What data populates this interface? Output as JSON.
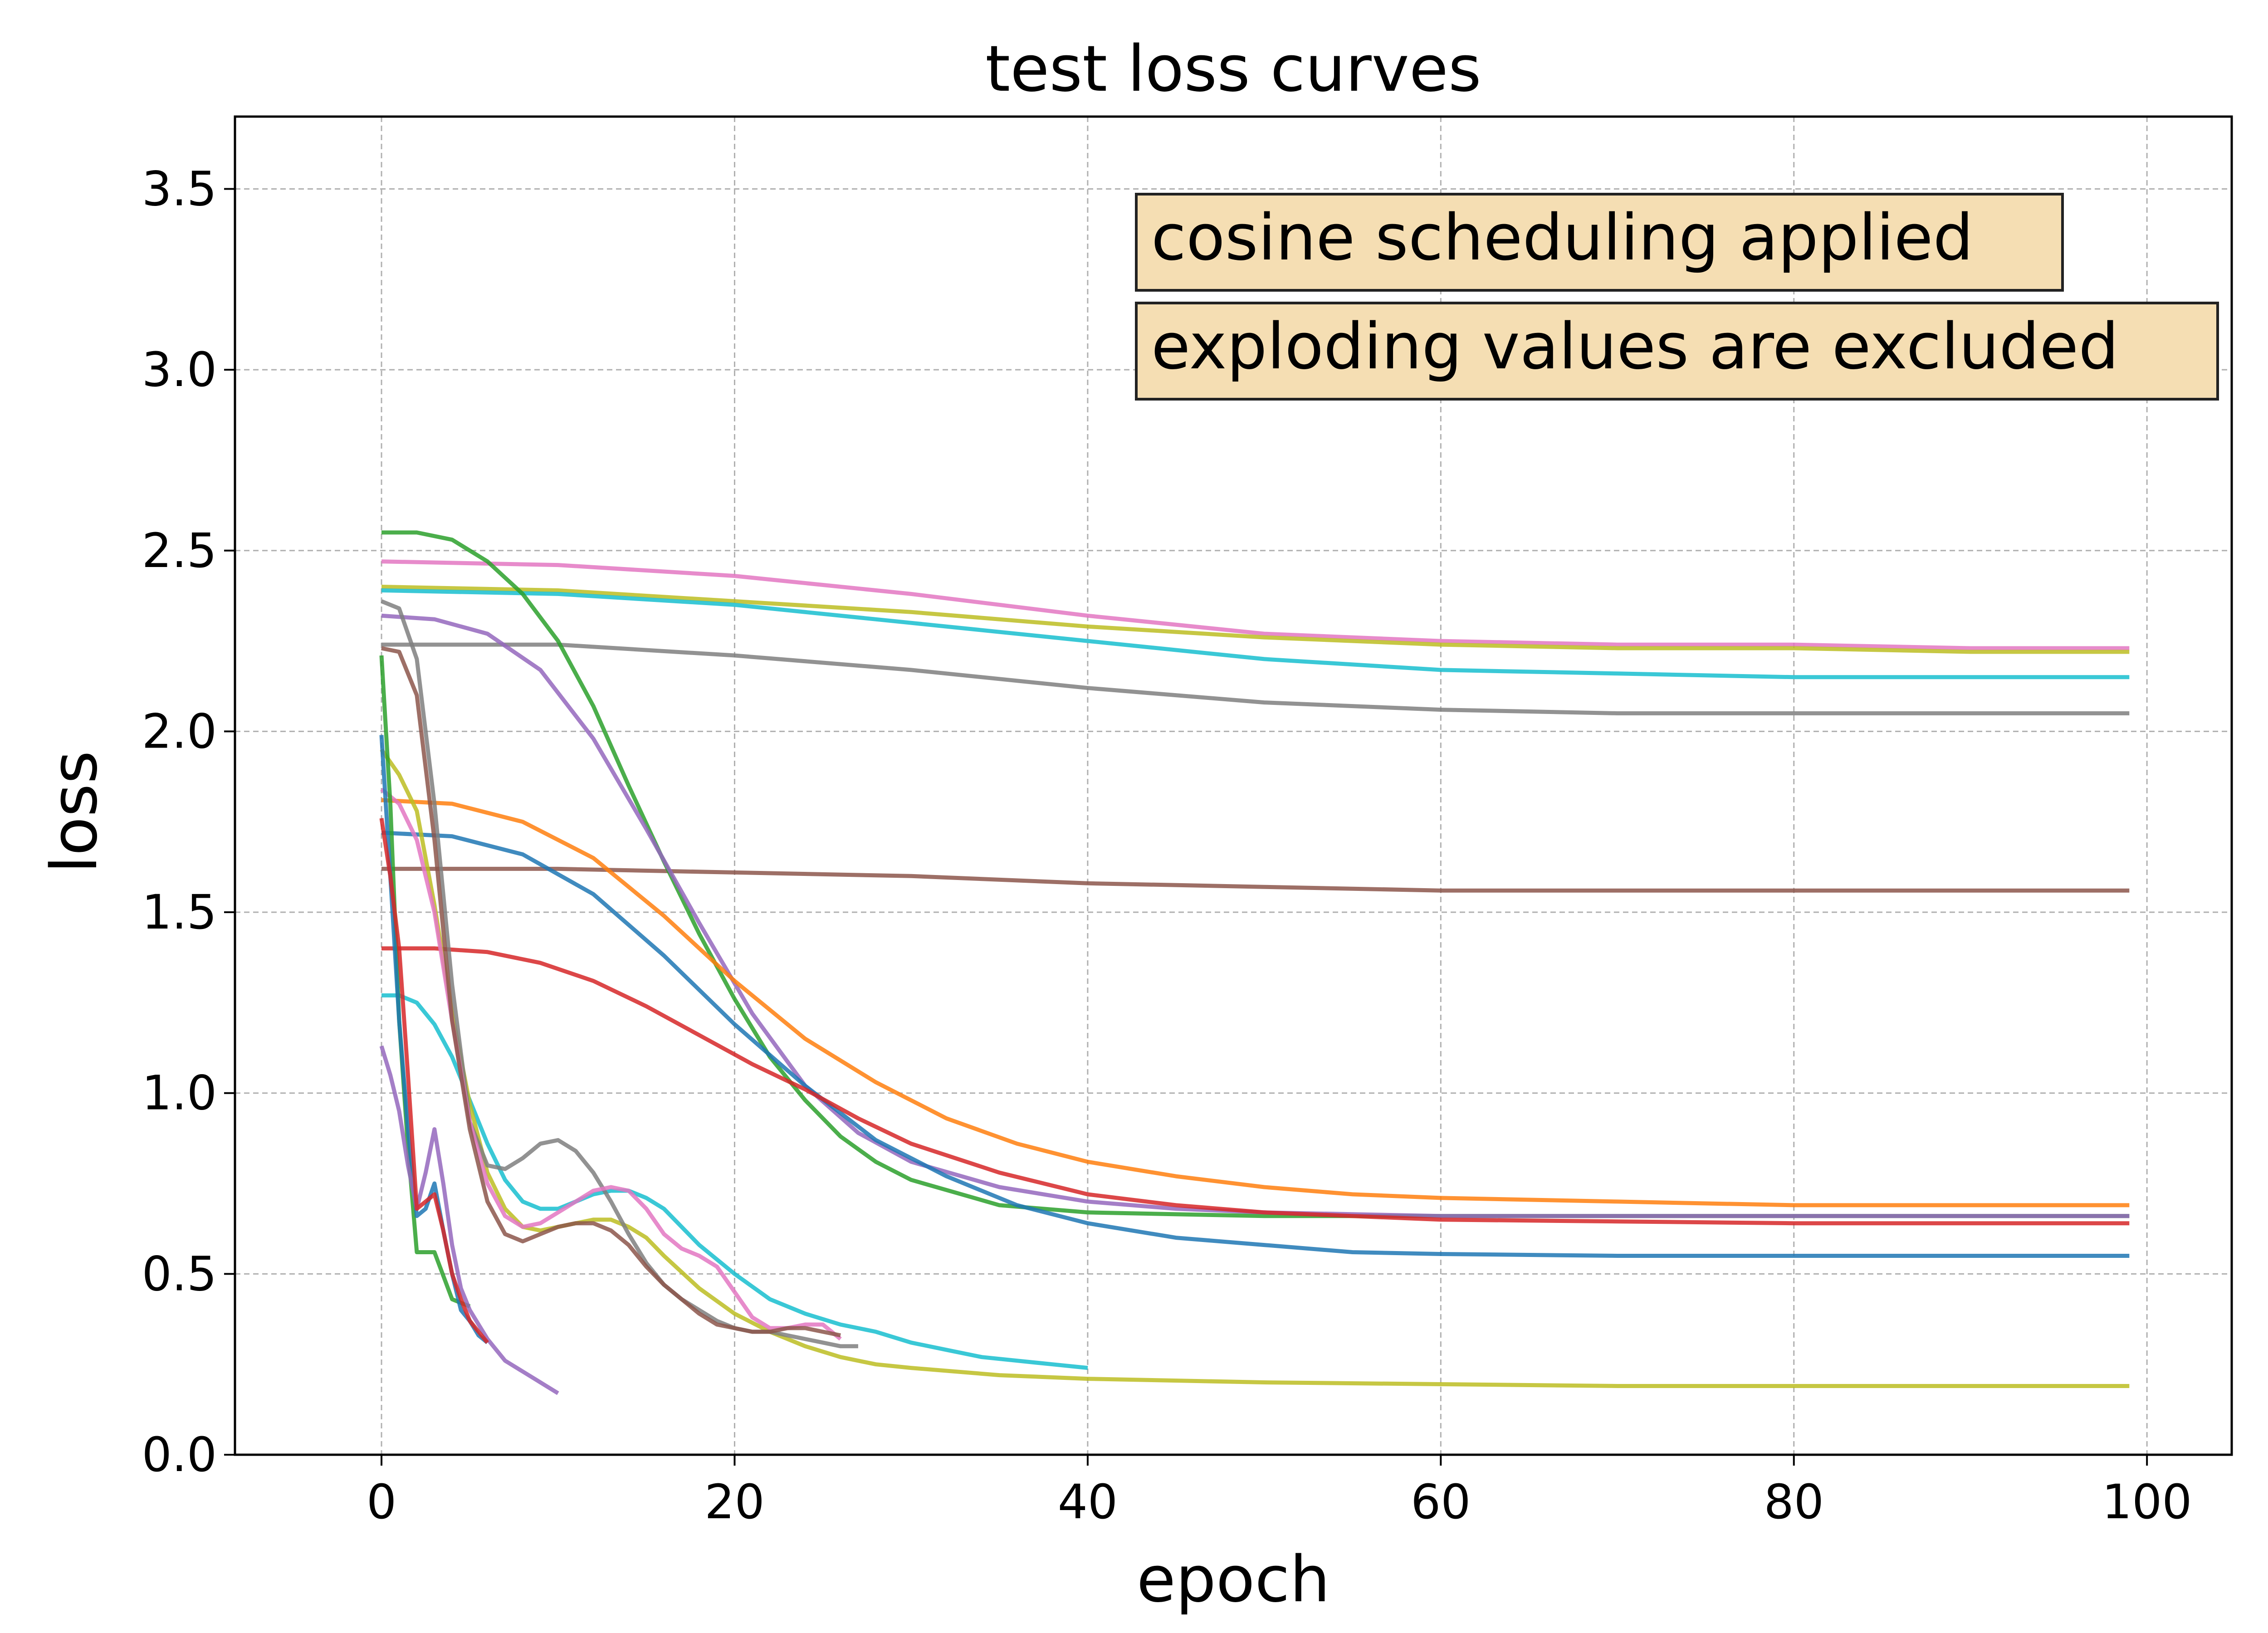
{
  "chart_data": {
    "type": "line",
    "title": "test loss curves",
    "xlabel": "epoch",
    "ylabel": "loss",
    "xlim": [
      -8.3,
      104.8
    ],
    "ylim": [
      0.0,
      3.7
    ],
    "xticks": [
      0,
      20,
      40,
      60,
      80,
      100
    ],
    "yticks": [
      0.0,
      0.5,
      1.0,
      1.5,
      2.0,
      2.5,
      3.0,
      3.5
    ],
    "xtick_labels": [
      "0",
      "20",
      "40",
      "60",
      "80",
      "100"
    ],
    "ytick_labels": [
      "0.0",
      "0.5",
      "1.0",
      "1.5",
      "2.0",
      "2.5",
      "3.0",
      "3.5"
    ],
    "grid": true,
    "legend": "none",
    "annotations": [
      {
        "text": "cosine scheduling applied",
        "box_color": "#f5deb3"
      },
      {
        "text": "exploding values are excluded",
        "box_color": "#f5deb3"
      }
    ],
    "series": [
      {
        "color": "#e377c2",
        "x": [
          0,
          10,
          20,
          30,
          40,
          50,
          60,
          70,
          80,
          90,
          99
        ],
        "y": [
          2.47,
          2.46,
          2.43,
          2.38,
          2.32,
          2.27,
          2.25,
          2.24,
          2.24,
          2.23,
          2.23
        ]
      },
      {
        "color": "#bcbd22",
        "x": [
          0,
          10,
          20,
          30,
          40,
          50,
          60,
          70,
          80,
          90,
          99
        ],
        "y": [
          2.4,
          2.39,
          2.36,
          2.33,
          2.29,
          2.26,
          2.24,
          2.23,
          2.23,
          2.22,
          2.22
        ]
      },
      {
        "color": "#17becf",
        "x": [
          0,
          10,
          20,
          30,
          40,
          50,
          60,
          70,
          80,
          90,
          99
        ],
        "y": [
          2.39,
          2.38,
          2.35,
          2.3,
          2.25,
          2.2,
          2.17,
          2.16,
          2.15,
          2.15,
          2.15
        ]
      },
      {
        "color": "#7f7f7f",
        "x": [
          0,
          10,
          20,
          30,
          40,
          50,
          60,
          70,
          80,
          90,
          99
        ],
        "y": [
          2.24,
          2.24,
          2.21,
          2.17,
          2.12,
          2.08,
          2.06,
          2.05,
          2.05,
          2.05,
          2.05
        ]
      },
      {
        "color": "#8c564b",
        "x": [
          0,
          10,
          20,
          30,
          40,
          50,
          60,
          70,
          80,
          90,
          99
        ],
        "y": [
          1.62,
          1.62,
          1.61,
          1.6,
          1.58,
          1.57,
          1.56,
          1.56,
          1.56,
          1.56,
          1.56
        ]
      },
      {
        "color": "#2ca02c",
        "x": [
          0,
          2,
          4,
          6,
          8,
          10,
          12,
          14,
          16,
          18,
          20,
          22,
          24,
          26,
          28,
          30,
          35,
          40,
          50,
          60,
          70,
          80,
          90,
          99
        ],
        "y": [
          2.55,
          2.55,
          2.53,
          2.47,
          2.38,
          2.25,
          2.07,
          1.85,
          1.64,
          1.44,
          1.26,
          1.1,
          0.98,
          0.88,
          0.81,
          0.76,
          0.69,
          0.67,
          0.66,
          0.66,
          0.66,
          0.66,
          0.66,
          0.66
        ]
      },
      {
        "color": "#9467bd",
        "x": [
          0,
          3,
          6,
          9,
          12,
          15,
          18,
          21,
          24,
          27,
          30,
          35,
          40,
          45,
          50,
          60,
          70,
          80,
          90,
          99
        ],
        "y": [
          2.32,
          2.31,
          2.27,
          2.17,
          1.98,
          1.73,
          1.47,
          1.22,
          1.02,
          0.89,
          0.81,
          0.74,
          0.7,
          0.68,
          0.67,
          0.66,
          0.66,
          0.66,
          0.66,
          0.66
        ]
      },
      {
        "color": "#ff7f0e",
        "x": [
          0,
          4,
          8,
          12,
          16,
          20,
          24,
          28,
          32,
          36,
          40,
          45,
          50,
          55,
          60,
          70,
          80,
          90,
          99
        ],
        "y": [
          1.81,
          1.8,
          1.75,
          1.65,
          1.49,
          1.31,
          1.15,
          1.03,
          0.93,
          0.86,
          0.81,
          0.77,
          0.74,
          0.72,
          0.71,
          0.7,
          0.69,
          0.69,
          0.69
        ]
      },
      {
        "color": "#1f77b4",
        "x": [
          0,
          4,
          8,
          12,
          16,
          20,
          24,
          28,
          32,
          36,
          40,
          45,
          50,
          55,
          60,
          70,
          80,
          90,
          99
        ],
        "y": [
          1.72,
          1.71,
          1.66,
          1.55,
          1.38,
          1.19,
          1.02,
          0.87,
          0.77,
          0.69,
          0.64,
          0.6,
          0.58,
          0.56,
          0.555,
          0.55,
          0.55,
          0.55,
          0.55
        ]
      },
      {
        "color": "#d62728",
        "x": [
          0,
          3,
          6,
          9,
          12,
          15,
          18,
          21,
          24,
          27,
          30,
          35,
          40,
          45,
          50,
          60,
          70,
          80,
          90,
          99
        ],
        "y": [
          1.4,
          1.4,
          1.39,
          1.36,
          1.31,
          1.24,
          1.16,
          1.08,
          1.01,
          0.93,
          0.86,
          0.78,
          0.72,
          0.69,
          0.67,
          0.65,
          0.645,
          0.64,
          0.64,
          0.64
        ]
      },
      {
        "color": "#17becf",
        "x": [
          0,
          1,
          2,
          3,
          4,
          5,
          6,
          7,
          8,
          9,
          10,
          11,
          12,
          13,
          14,
          15,
          16,
          18,
          20,
          22,
          24,
          26,
          28,
          30,
          32,
          34,
          36,
          38,
          40
        ],
        "y": [
          1.27,
          1.27,
          1.25,
          1.19,
          1.1,
          0.98,
          0.86,
          0.76,
          0.7,
          0.68,
          0.68,
          0.7,
          0.72,
          0.73,
          0.73,
          0.71,
          0.68,
          0.58,
          0.5,
          0.43,
          0.39,
          0.36,
          0.34,
          0.31,
          0.29,
          0.27,
          0.26,
          0.25,
          0.24
        ]
      },
      {
        "color": "#bcbd22",
        "x": [
          0,
          1,
          2,
          3,
          4,
          5,
          6,
          7,
          8,
          9,
          10,
          11,
          12,
          13,
          14,
          15,
          16,
          18,
          20,
          22,
          24,
          26,
          28,
          30,
          35,
          40,
          50,
          60,
          70,
          80,
          90,
          99
        ],
        "y": [
          1.95,
          1.88,
          1.78,
          1.52,
          1.22,
          0.97,
          0.78,
          0.68,
          0.63,
          0.62,
          0.63,
          0.64,
          0.65,
          0.65,
          0.63,
          0.6,
          0.55,
          0.46,
          0.39,
          0.34,
          0.3,
          0.27,
          0.25,
          0.24,
          0.22,
          0.21,
          0.2,
          0.195,
          0.19,
          0.19,
          0.19,
          0.19
        ]
      },
      {
        "color": "#7f7f7f",
        "x": [
          0,
          1,
          2,
          3,
          4,
          5,
          6,
          7,
          8,
          9,
          10,
          11,
          12,
          13,
          14,
          15,
          16,
          17,
          18,
          19,
          20,
          21,
          22,
          23,
          24,
          25,
          26,
          27
        ],
        "y": [
          2.36,
          2.34,
          2.2,
          1.8,
          1.3,
          0.92,
          0.8,
          0.79,
          0.82,
          0.86,
          0.87,
          0.84,
          0.78,
          0.7,
          0.61,
          0.53,
          0.47,
          0.43,
          0.4,
          0.37,
          0.35,
          0.34,
          0.34,
          0.33,
          0.32,
          0.31,
          0.3,
          0.3
        ]
      },
      {
        "color": "#e377c2",
        "x": [
          0,
          1,
          2,
          3,
          4,
          5,
          6,
          7,
          8,
          9,
          10,
          11,
          12,
          13,
          14,
          15,
          16,
          17,
          18,
          19,
          20,
          21,
          22,
          23,
          24,
          25,
          26
        ],
        "y": [
          1.84,
          1.8,
          1.7,
          1.5,
          1.2,
          0.92,
          0.75,
          0.66,
          0.63,
          0.64,
          0.67,
          0.7,
          0.73,
          0.74,
          0.73,
          0.68,
          0.61,
          0.57,
          0.55,
          0.52,
          0.45,
          0.38,
          0.35,
          0.35,
          0.36,
          0.36,
          0.32
        ]
      },
      {
        "color": "#8c564b",
        "x": [
          0,
          1,
          2,
          3,
          4,
          5,
          6,
          7,
          8,
          9,
          10,
          11,
          12,
          13,
          14,
          15,
          16,
          17,
          18,
          19,
          20,
          21,
          22,
          23,
          24,
          25,
          26
        ],
        "y": [
          2.23,
          2.22,
          2.1,
          1.7,
          1.2,
          0.9,
          0.7,
          0.61,
          0.59,
          0.61,
          0.63,
          0.64,
          0.64,
          0.62,
          0.58,
          0.52,
          0.47,
          0.43,
          0.39,
          0.36,
          0.35,
          0.34,
          0.34,
          0.35,
          0.35,
          0.34,
          0.33
        ]
      },
      {
        "color": "#2ca02c",
        "x": [
          0,
          0.5,
          1,
          1.5,
          2,
          3,
          4,
          5
        ],
        "y": [
          2.21,
          1.8,
          1.2,
          0.85,
          0.56,
          0.56,
          0.43,
          0.41
        ]
      },
      {
        "color": "#1f77b4",
        "x": [
          0,
          0.5,
          1,
          1.5,
          2,
          2.5,
          3,
          3.5,
          4,
          4.5,
          5,
          5.5,
          6
        ],
        "y": [
          1.99,
          1.6,
          1.2,
          0.9,
          0.66,
          0.68,
          0.75,
          0.62,
          0.5,
          0.4,
          0.37,
          0.33,
          0.31
        ]
      },
      {
        "color": "#9467bd",
        "x": [
          0,
          0.5,
          1,
          1.5,
          2,
          2.5,
          3,
          3.5,
          4,
          4.5,
          5,
          6,
          7,
          8,
          9,
          10
        ],
        "y": [
          1.13,
          1.05,
          0.95,
          0.8,
          0.68,
          0.78,
          0.9,
          0.75,
          0.58,
          0.46,
          0.4,
          0.32,
          0.26,
          0.23,
          0.2,
          0.17
        ]
      },
      {
        "color": "#d62728",
        "x": [
          0,
          0.5,
          1,
          1.5,
          2,
          2.5,
          3,
          3.5,
          4,
          4.5,
          5,
          5.5,
          6
        ],
        "y": [
          1.76,
          1.6,
          1.4,
          1.05,
          0.68,
          0.7,
          0.72,
          0.62,
          0.5,
          0.43,
          0.37,
          0.34,
          0.31
        ]
      }
    ]
  }
}
